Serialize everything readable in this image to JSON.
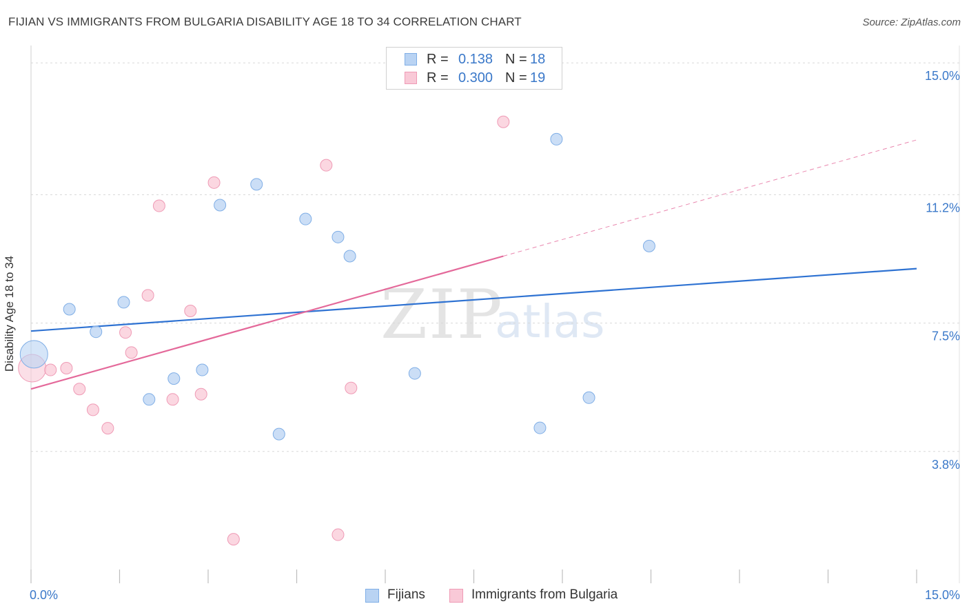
{
  "header": {
    "title": "FIJIAN VS IMMIGRANTS FROM BULGARIA DISABILITY AGE 18 TO 34 CORRELATION CHART",
    "source": "Source: ZipAtlas.com"
  },
  "watermark": {
    "zip": "ZIP",
    "atlas": "atlas"
  },
  "legend": {
    "rows": [
      {
        "r_label": "R =",
        "r_value": "0.138",
        "n_label": "N =",
        "n_value": "18"
      },
      {
        "r_label": "R =",
        "r_value": "0.300",
        "n_label": "N =",
        "n_value": "19"
      }
    ]
  },
  "bottom_legend": {
    "fijians": "Fijians",
    "bulgaria": "Immigrants from Bulgaria"
  },
  "colors": {
    "fijian_fill": "#b9d3f3",
    "fijian_stroke": "#7faee6",
    "fijian_line": "#2e72d2",
    "bulgaria_fill": "#f9c9d7",
    "bulgaria_stroke": "#ef9ab5",
    "bulgaria_line": "#e4699a",
    "grid": "#d8d8d8",
    "tick_label": "#3a78c9"
  },
  "chart_data": {
    "type": "scatter",
    "title": "FIJIAN VS IMMIGRANTS FROM BULGARIA DISABILITY AGE 18 TO 34 CORRELATION CHART",
    "xlabel": "",
    "ylabel": "Disability Age 18 to 34",
    "xlim": [
      0,
      15
    ],
    "ylim": [
      0,
      15.7
    ],
    "x_tick_labels": [
      "0.0%",
      "15.0%"
    ],
    "y_ticks": [
      3.8,
      7.5,
      11.2,
      15.0
    ],
    "y_tick_labels": [
      "3.8%",
      "7.5%",
      "11.2%",
      "15.0%"
    ],
    "grid": true,
    "legend_position": "top-center",
    "series": [
      {
        "name": "Fijians",
        "r": 0.138,
        "n": 18,
        "points": [
          {
            "x": 0.05,
            "y": 6.6,
            "size": "large"
          },
          {
            "x": 0.65,
            "y": 7.9
          },
          {
            "x": 1.1,
            "y": 7.25
          },
          {
            "x": 1.57,
            "y": 8.1
          },
          {
            "x": 2.0,
            "y": 5.3
          },
          {
            "x": 2.42,
            "y": 5.9
          },
          {
            "x": 2.9,
            "y": 6.15
          },
          {
            "x": 3.2,
            "y": 10.9
          },
          {
            "x": 3.82,
            "y": 11.5
          },
          {
            "x": 4.2,
            "y": 4.3
          },
          {
            "x": 4.65,
            "y": 10.5
          },
          {
            "x": 5.2,
            "y": 9.98
          },
          {
            "x": 5.4,
            "y": 9.43
          },
          {
            "x": 6.5,
            "y": 6.05
          },
          {
            "x": 8.62,
            "y": 4.48
          },
          {
            "x": 8.9,
            "y": 12.8
          },
          {
            "x": 9.45,
            "y": 5.35
          },
          {
            "x": 10.47,
            "y": 9.72
          }
        ],
        "trend": {
          "x": [
            0,
            15
          ],
          "y": [
            7.27,
            9.07
          ],
          "style": "solid"
        }
      },
      {
        "name": "Immigrants from Bulgaria",
        "r": 0.3,
        "n": 19,
        "points": [
          {
            "x": 0.02,
            "y": 6.2,
            "size": "large"
          },
          {
            "x": 0.33,
            "y": 6.15
          },
          {
            "x": 0.6,
            "y": 6.2
          },
          {
            "x": 0.82,
            "y": 5.6
          },
          {
            "x": 1.05,
            "y": 5.0
          },
          {
            "x": 1.3,
            "y": 4.47
          },
          {
            "x": 1.6,
            "y": 7.23
          },
          {
            "x": 1.7,
            "y": 6.65
          },
          {
            "x": 1.98,
            "y": 8.3
          },
          {
            "x": 2.17,
            "y": 10.88
          },
          {
            "x": 2.4,
            "y": 5.3
          },
          {
            "x": 2.7,
            "y": 7.85
          },
          {
            "x": 2.88,
            "y": 5.45
          },
          {
            "x": 3.1,
            "y": 11.55
          },
          {
            "x": 3.43,
            "y": 1.27
          },
          {
            "x": 5.0,
            "y": 12.05
          },
          {
            "x": 5.2,
            "y": 1.4
          },
          {
            "x": 5.42,
            "y": 5.63
          },
          {
            "x": 8.0,
            "y": 13.3
          }
        ],
        "trend": {
          "x": [
            0,
            8.0
          ],
          "y": [
            5.6,
            9.43
          ],
          "style": "solid"
        },
        "trend_extension": {
          "x": [
            8.0,
            15
          ],
          "y": [
            9.43,
            12.78
          ],
          "style": "dashed"
        }
      }
    ]
  }
}
